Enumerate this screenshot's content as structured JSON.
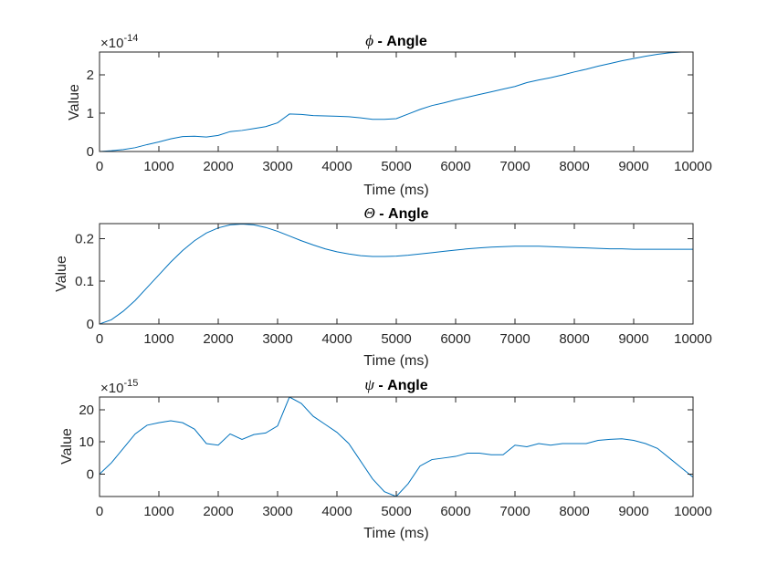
{
  "figure": {
    "background": "#ffffff"
  },
  "chart_data": [
    {
      "type": "line",
      "title_symbol": "ϕ",
      "title_rest": " - Angle",
      "xlabel": "Time (ms)",
      "ylabel": "Value",
      "xlim": [
        0,
        10000
      ],
      "ylim": [
        0,
        2.6
      ],
      "multiplier": "×10",
      "multiplier_exp": "-14",
      "xticks": [
        0,
        1000,
        2000,
        3000,
        4000,
        5000,
        6000,
        7000,
        8000,
        9000,
        10000
      ],
      "yticks": [
        0,
        1,
        2
      ],
      "color": "#0072BD",
      "series": [
        {
          "x": [
            0,
            200,
            400,
            600,
            800,
            1000,
            1200,
            1400,
            1600,
            1800,
            2000,
            2200,
            2400,
            2600,
            2800,
            3000,
            3200,
            3400,
            3600,
            3800,
            4000,
            4200,
            4400,
            4600,
            4800,
            5000,
            5200,
            5400,
            5600,
            5800,
            6000,
            6200,
            6400,
            6600,
            6800,
            7000,
            7200,
            7400,
            7600,
            7800,
            8000,
            8200,
            8400,
            8600,
            8800,
            9000,
            9200,
            9400,
            9600,
            9800,
            10000
          ],
          "y": [
            0.0,
            0.02,
            0.05,
            0.1,
            0.18,
            0.25,
            0.33,
            0.39,
            0.4,
            0.38,
            0.42,
            0.52,
            0.55,
            0.6,
            0.65,
            0.75,
            0.98,
            0.97,
            0.94,
            0.93,
            0.92,
            0.91,
            0.88,
            0.84,
            0.84,
            0.86,
            0.98,
            1.1,
            1.2,
            1.27,
            1.35,
            1.42,
            1.49,
            1.56,
            1.63,
            1.7,
            1.8,
            1.87,
            1.93,
            2.0,
            2.08,
            2.15,
            2.23,
            2.3,
            2.37,
            2.43,
            2.49,
            2.54,
            2.58,
            2.6,
            2.6
          ]
        }
      ]
    },
    {
      "type": "line",
      "title_symbol": "Θ",
      "title_rest": " - Angle",
      "xlabel": "Time (ms)",
      "ylabel": "Value",
      "xlim": [
        0,
        10000
      ],
      "ylim": [
        0,
        0.235
      ],
      "multiplier": "",
      "multiplier_exp": "",
      "xticks": [
        0,
        1000,
        2000,
        3000,
        4000,
        5000,
        6000,
        7000,
        8000,
        9000,
        10000
      ],
      "yticks": [
        0,
        0.1,
        0.2
      ],
      "color": "#0072BD",
      "series": [
        {
          "x": [
            0,
            200,
            400,
            600,
            800,
            1000,
            1200,
            1400,
            1600,
            1800,
            2000,
            2200,
            2400,
            2600,
            2800,
            3000,
            3200,
            3400,
            3600,
            3800,
            4000,
            4200,
            4400,
            4600,
            4800,
            5000,
            5200,
            5400,
            5600,
            5800,
            6000,
            6200,
            6400,
            6600,
            6800,
            7000,
            7200,
            7400,
            7600,
            7800,
            8000,
            8200,
            8400,
            8600,
            8800,
            9000,
            9200,
            9400,
            9600,
            9800,
            10000
          ],
          "y": [
            0.0,
            0.01,
            0.03,
            0.055,
            0.085,
            0.115,
            0.145,
            0.172,
            0.195,
            0.213,
            0.225,
            0.232,
            0.234,
            0.232,
            0.226,
            0.217,
            0.206,
            0.195,
            0.185,
            0.176,
            0.169,
            0.164,
            0.16,
            0.158,
            0.158,
            0.159,
            0.161,
            0.164,
            0.167,
            0.17,
            0.173,
            0.176,
            0.178,
            0.18,
            0.181,
            0.182,
            0.182,
            0.182,
            0.181,
            0.18,
            0.179,
            0.178,
            0.177,
            0.176,
            0.176,
            0.175,
            0.175,
            0.175,
            0.175,
            0.175,
            0.175
          ]
        }
      ]
    },
    {
      "type": "line",
      "title_symbol": "ψ",
      "title_rest": " - Angle",
      "xlabel": "Time (ms)",
      "ylabel": "Value",
      "xlim": [
        0,
        10000
      ],
      "ylim": [
        -7,
        24
      ],
      "multiplier": "×10",
      "multiplier_exp": "-15",
      "xticks": [
        0,
        1000,
        2000,
        3000,
        4000,
        5000,
        6000,
        7000,
        8000,
        9000,
        10000
      ],
      "yticks": [
        0,
        10,
        20
      ],
      "color": "#0072BD",
      "series": [
        {
          "x": [
            0,
            200,
            400,
            600,
            800,
            1000,
            1200,
            1400,
            1600,
            1800,
            2000,
            2200,
            2400,
            2600,
            2800,
            3000,
            3200,
            3400,
            3600,
            3800,
            4000,
            4200,
            4400,
            4600,
            4800,
            5000,
            5200,
            5400,
            5600,
            5800,
            6000,
            6200,
            6400,
            6600,
            6800,
            7000,
            7200,
            7400,
            7600,
            7800,
            8000,
            8200,
            8400,
            8600,
            8800,
            9000,
            9200,
            9400,
            9600,
            9800,
            10000
          ],
          "y": [
            0.0,
            3.5,
            8.0,
            12.5,
            15.2,
            16.0,
            16.6,
            16.0,
            14.0,
            9.5,
            9.0,
            12.5,
            10.8,
            12.3,
            12.8,
            15.0,
            24.0,
            22.0,
            18.0,
            15.5,
            13.0,
            9.5,
            4.0,
            -1.5,
            -5.5,
            -7.0,
            -3.0,
            2.5,
            4.5,
            5.0,
            5.5,
            6.5,
            6.5,
            6.0,
            6.0,
            9.0,
            8.5,
            9.5,
            9.0,
            9.5,
            9.5,
            9.5,
            10.5,
            10.8,
            11.0,
            10.5,
            9.5,
            8.0,
            5.0,
            2.0,
            -1.0
          ]
        }
      ]
    }
  ]
}
